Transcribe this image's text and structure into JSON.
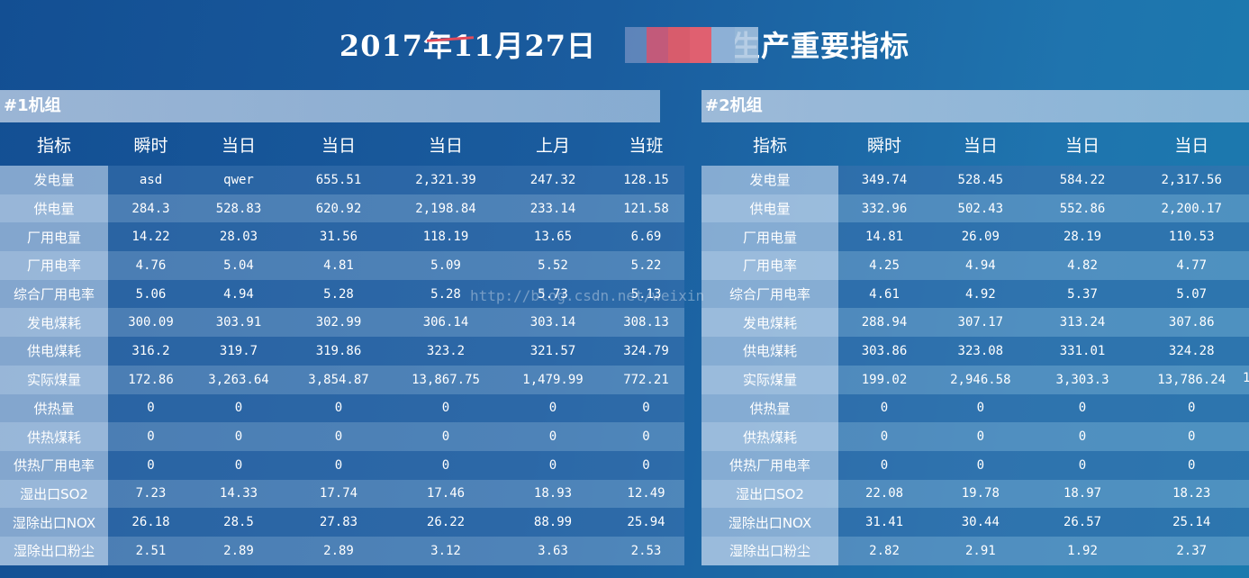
{
  "title": "2017年11月27日 生产重要指标",
  "title_prefix": "2017年11月27日",
  "title_suffix": "生产重要指标",
  "watermark": "http://blog.csdn.net/weixin",
  "edge_char": "1",
  "groups": [
    {
      "name": "#1机组",
      "headers": [
        "指标",
        "瞬时",
        "当日",
        "当日",
        "当日",
        "上月",
        "当班"
      ],
      "rows": [
        [
          "发电量",
          "asd",
          "qwer",
          "655.51",
          "2,321.39",
          "247.32",
          "128.15"
        ],
        [
          "供电量",
          "284.3",
          "528.83",
          "620.92",
          "2,198.84",
          "233.14",
          "121.58"
        ],
        [
          "厂用电量",
          "14.22",
          "28.03",
          "31.56",
          "118.19",
          "13.65",
          "6.69"
        ],
        [
          "厂用电率",
          "4.76",
          "5.04",
          "4.81",
          "5.09",
          "5.52",
          "5.22"
        ],
        [
          "综合厂用电率",
          "5.06",
          "4.94",
          "5.28",
          "5.28",
          "5.73",
          "5.13"
        ],
        [
          "发电煤耗",
          "300.09",
          "303.91",
          "302.99",
          "306.14",
          "303.14",
          "308.13"
        ],
        [
          "供电煤耗",
          "316.2",
          "319.7",
          "319.86",
          "323.2",
          "321.57",
          "324.79"
        ],
        [
          "实际煤量",
          "172.86",
          "3,263.64",
          "3,854.87",
          "13,867.75",
          "1,479.99",
          "772.21"
        ],
        [
          "供热量",
          "0",
          "0",
          "0",
          "0",
          "0",
          "0"
        ],
        [
          "供热煤耗",
          "0",
          "0",
          "0",
          "0",
          "0",
          "0"
        ],
        [
          "供热厂用电率",
          "0",
          "0",
          "0",
          "0",
          "0",
          "0"
        ],
        [
          "湿出口SO2",
          "7.23",
          "14.33",
          "17.74",
          "17.46",
          "18.93",
          "12.49"
        ],
        [
          "湿除出口NOX",
          "26.18",
          "28.5",
          "27.83",
          "26.22",
          "88.99",
          "25.94"
        ],
        [
          "湿除出口粉尘",
          "2.51",
          "2.89",
          "2.89",
          "3.12",
          "3.63",
          "2.53"
        ]
      ]
    },
    {
      "name": "#2机组",
      "headers": [
        "指标",
        "瞬时",
        "当日",
        "当日",
        "当日"
      ],
      "rows": [
        [
          "发电量",
          "349.74",
          "528.45",
          "584.22",
          "2,317.56"
        ],
        [
          "供电量",
          "332.96",
          "502.43",
          "552.86",
          "2,200.17"
        ],
        [
          "厂用电量",
          "14.81",
          "26.09",
          "28.19",
          "110.53"
        ],
        [
          "厂用电率",
          "4.25",
          "4.94",
          "4.82",
          "4.77"
        ],
        [
          "综合厂用电率",
          "4.61",
          "4.92",
          "5.37",
          "5.07"
        ],
        [
          "发电煤耗",
          "288.94",
          "307.17",
          "313.24",
          "307.86"
        ],
        [
          "供电煤耗",
          "303.86",
          "323.08",
          "331.01",
          "324.28"
        ],
        [
          "实际煤量",
          "199.02",
          "2,946.58",
          "3,303.3",
          "13,786.24"
        ],
        [
          "供热量",
          "0",
          "0",
          "0",
          "0"
        ],
        [
          "供热煤耗",
          "0",
          "0",
          "0",
          "0"
        ],
        [
          "供热厂用电率",
          "0",
          "0",
          "0",
          "0"
        ],
        [
          "湿出口SO2",
          "22.08",
          "19.78",
          "18.97",
          "18.23"
        ],
        [
          "湿除出口NOX",
          "31.41",
          "30.44",
          "26.57",
          "25.14"
        ],
        [
          "湿除出口粉尘",
          "2.82",
          "2.91",
          "1.92",
          "2.37"
        ]
      ]
    }
  ]
}
